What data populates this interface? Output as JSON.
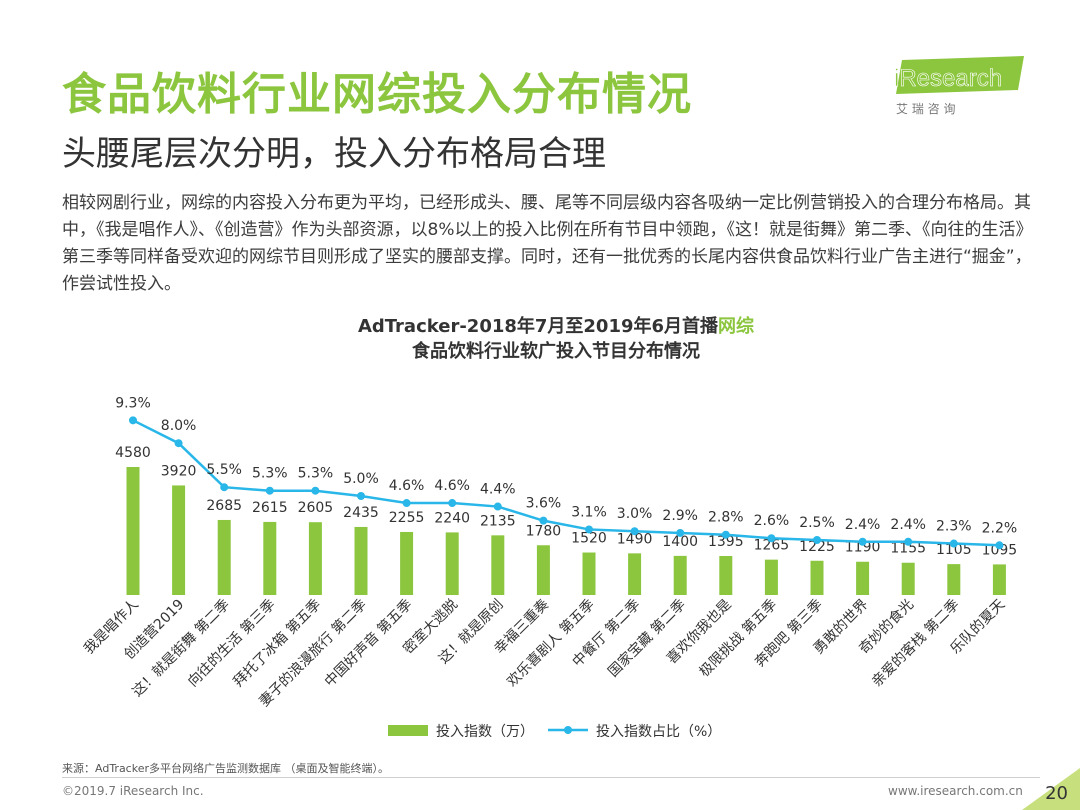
{
  "header": {
    "title": "食品饮料行业网综投入分布情况",
    "subtitle": "头腰尾层次分明，投入分布格局合理"
  },
  "logo": {
    "name": "iResearch",
    "chinese": "艾 瑞 咨 询"
  },
  "body_text": "相较网剧行业，网综的内容投入分布更为平均，已经形成头、腰、尾等不同层级内容各吸纳一定比例营销投入的合理分布格局。其中，《我是唱作人》、《创造营》作为头部资源，以8%以上的投入比例在所有节目中领跑，《这！就是街舞》第二季、《向往的生活》第三季等同样备受欢迎的网综节目则形成了坚实的腰部支撑。同时，还有一批优秀的长尾内容供食品饮料行业广告主进行“掘金”，作尝试性投入。",
  "chart_data": {
    "type": "bar+line",
    "title_line1": "AdTracker-2018年7月至2019年6月首播",
    "title_highlight": "网综",
    "title_line2": "食品饮料行业软广投入节目分布情况",
    "categories": [
      "我是唱作人",
      "创造营2019",
      "这！就是街舞 第二季",
      "向往的生活 第三季",
      "拜托了冰箱 第五季",
      "妻子的浪漫旅行 第二季",
      "中国好声音 第五季",
      "密室大逃脱",
      "这！就是原创",
      "幸福三重奏",
      "欢乐喜剧人 第五季",
      "中餐厅 第二季",
      "国家宝藏 第二季",
      "喜欢你我也是",
      "极限挑战 第五季",
      "奔跑吧 第三季",
      "勇敢的世界",
      "奇妙的食光",
      "亲爱的客栈 第二季",
      "乐队的夏天"
    ],
    "series": [
      {
        "name": "投入指数（万）",
        "type": "bar",
        "color": "#8cc63f",
        "values": [
          4580,
          3920,
          2685,
          2615,
          2605,
          2435,
          2255,
          2240,
          2135,
          1780,
          1520,
          1490,
          1400,
          1395,
          1265,
          1225,
          1190,
          1155,
          1105,
          1095
        ],
        "labels": [
          "4580",
          "3920",
          "2685",
          "2615",
          "2605",
          "2435",
          "2255",
          "2240",
          "2135",
          "1780",
          "1520",
          "1490",
          "1400",
          "1395",
          "1265",
          "1225",
          "1190",
          "1155",
          "1105",
          "1095"
        ]
      },
      {
        "name": "投入指数占比（%）",
        "type": "line",
        "color": "#29b6e8",
        "values": [
          9.3,
          8.0,
          5.5,
          5.3,
          5.3,
          5.0,
          4.6,
          4.6,
          4.4,
          3.6,
          3.1,
          3.0,
          2.9,
          2.8,
          2.6,
          2.5,
          2.4,
          2.4,
          2.3,
          2.2
        ],
        "labels": [
          "9.3%",
          "8.0%",
          "5.5%",
          "5.3%",
          "5.3%",
          "5.0%",
          "4.6%",
          "4.6%",
          "4.4%",
          "3.6%",
          "3.1%",
          "3.0%",
          "2.9%",
          "2.8%",
          "2.6%",
          "2.5%",
          "2.4%",
          "2.4%",
          "2.3%",
          "2.2%"
        ]
      }
    ],
    "legend_position": "bottom"
  },
  "source": "来源：AdTracker多平台网络广告监测数据库 （桌面及智能终端）。",
  "footer": {
    "copyright": "©2019.7 iResearch Inc.",
    "website": "www.iresearch.com.cn",
    "page_number": "20"
  }
}
